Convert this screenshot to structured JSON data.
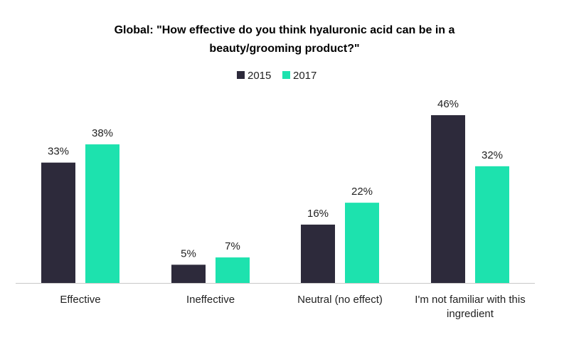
{
  "chart_data": {
    "type": "bar",
    "title": "Global: \"How effective do you think hyaluronic acid can be in a beauty/grooming product?\"",
    "title_lines": [
      "Global: \"How effective do you think hyaluronic acid can be in a",
      "beauty/grooming product?\""
    ],
    "categories": [
      "Effective",
      "Ineffective",
      "Neutral (no effect)",
      "I'm not familiar with this ingredient"
    ],
    "category_lines": [
      [
        "Effective"
      ],
      [
        "Ineffective"
      ],
      [
        "Neutral (no effect)"
      ],
      [
        "I'm not familiar with this",
        "ingredient"
      ]
    ],
    "series": [
      {
        "name": "2015",
        "values": [
          33,
          5,
          16,
          46
        ],
        "labels": [
          "33%",
          "5%",
          "16%",
          "46%"
        ],
        "color": "#2d2a3b"
      },
      {
        "name": "2017",
        "values": [
          38,
          7,
          22,
          32
        ],
        "labels": [
          "38%",
          "7%",
          "22%",
          "32%"
        ],
        "color": "#1de2ae"
      }
    ],
    "ylim": [
      0,
      46
    ],
    "grid": false,
    "legend_position": "top-center",
    "xlabel": "",
    "ylabel": "",
    "axis_color": "#c8c8c8"
  }
}
